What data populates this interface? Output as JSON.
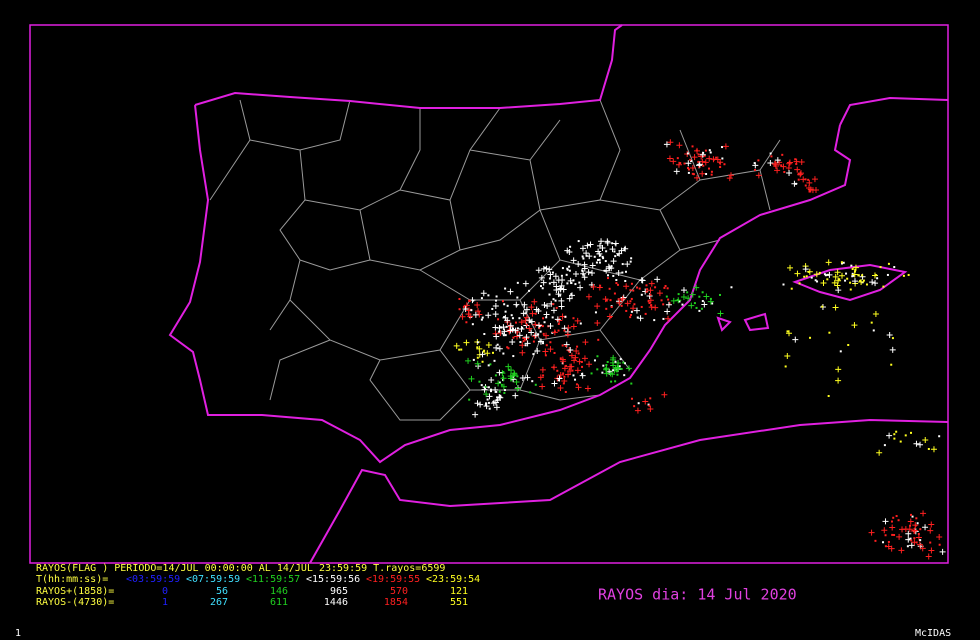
{
  "header": "RAYOS(FLAG ) PERIODO=14/JUL 00:00:00 AL 14/JUL 23:59:59  T.rayos=6599",
  "legend": {
    "time_label": "T(hh:mm:ss)=",
    "intervals": [
      "<03:59:59",
      "<07:59:59",
      "<11:59:57",
      "<15:59:56",
      "<19:59:55",
      "<23:59:54"
    ],
    "colors": [
      "#2020ff",
      "#40e0ff",
      "#20d020",
      "#ffffff",
      "#ff2020",
      "#ffff20"
    ],
    "rows": [
      {
        "label": "RAYOS+(1858)=",
        "values": [
          0,
          56,
          146,
          965,
          570,
          121
        ]
      },
      {
        "label": "RAYOS-(4730)=",
        "values": [
          1,
          267,
          611,
          1446,
          1854,
          551
        ]
      }
    ]
  },
  "caption": "RAYOS dia: 14 Jul 2020",
  "frame_number": "1",
  "software": "McIDAS"
}
